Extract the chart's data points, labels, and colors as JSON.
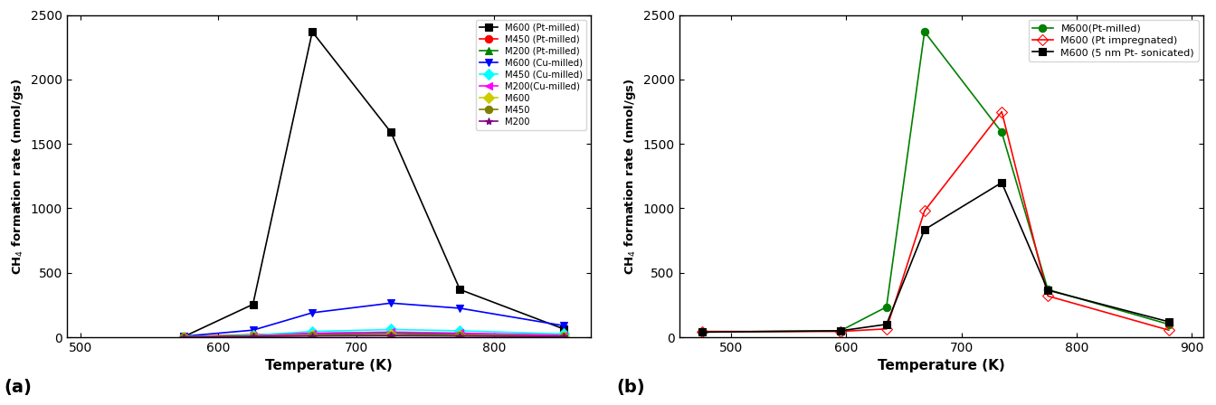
{
  "panel_a": {
    "series": [
      {
        "label": "M600 (Pt-milled)",
        "color": "black",
        "marker": "s",
        "marker_face": "black",
        "marker_edge": "black",
        "linestyle": "-",
        "x": [
          575,
          625,
          668,
          725,
          775,
          850
        ],
        "y": [
          5,
          255,
          2370,
          1590,
          370,
          65
        ]
      },
      {
        "label": "M450 (Pt-milled)",
        "color": "red",
        "marker": "o",
        "marker_face": "red",
        "marker_edge": "red",
        "linestyle": "-",
        "x": [
          575,
          625,
          668,
          725,
          775,
          850
        ],
        "y": [
          5,
          20,
          30,
          35,
          25,
          15
        ]
      },
      {
        "label": "M200 (Pt-milled)",
        "color": "green",
        "marker": "^",
        "marker_face": "green",
        "marker_edge": "green",
        "linestyle": "-",
        "x": [
          575,
          625,
          668,
          725,
          775,
          850
        ],
        "y": [
          3,
          15,
          25,
          30,
          20,
          12
        ]
      },
      {
        "label": "M600 (Cu-milled)",
        "color": "blue",
        "marker": "v",
        "marker_face": "blue",
        "marker_edge": "blue",
        "linestyle": "-",
        "x": [
          575,
          625,
          668,
          725,
          775,
          850
        ],
        "y": [
          8,
          55,
          190,
          265,
          225,
          90
        ]
      },
      {
        "label": "M450 (Cu-milled)",
        "color": "cyan",
        "marker": "D",
        "marker_face": "cyan",
        "marker_edge": "cyan",
        "linestyle": "-",
        "x": [
          575,
          625,
          668,
          725,
          775,
          850
        ],
        "y": [
          3,
          15,
          45,
          60,
          50,
          25
        ]
      },
      {
        "label": "M200(Cu-milled)",
        "color": "magenta",
        "marker": "<",
        "marker_face": "magenta",
        "marker_edge": "magenta",
        "linestyle": "-",
        "x": [
          575,
          625,
          668,
          725,
          775,
          850
        ],
        "y": [
          2,
          10,
          30,
          40,
          32,
          15
        ]
      },
      {
        "label": "M600",
        "color": "#cccc00",
        "marker": "D",
        "marker_face": "#cccc00",
        "marker_edge": "#cccc00",
        "linestyle": "-",
        "x": [
          575,
          625,
          668,
          725,
          775,
          850
        ],
        "y": [
          2,
          8,
          15,
          18,
          14,
          8
        ]
      },
      {
        "label": "M450",
        "color": "#808000",
        "marker": "o",
        "marker_face": "#808000",
        "marker_edge": "#808000",
        "linestyle": "-",
        "x": [
          575,
          625,
          668,
          725,
          775,
          850
        ],
        "y": [
          2,
          8,
          13,
          16,
          12,
          7
        ]
      },
      {
        "label": "M200",
        "color": "purple",
        "marker": "*",
        "marker_face": "purple",
        "marker_edge": "purple",
        "linestyle": "-",
        "x": [
          575,
          625,
          668,
          725,
          775,
          850
        ],
        "y": [
          1,
          6,
          10,
          12,
          10,
          5
        ]
      }
    ],
    "xlabel": "Temperature (K)",
    "ylabel": "CH$_4$ formation rate (nmol/gs)",
    "xlim": [
      490,
      870
    ],
    "ylim": [
      0,
      2500
    ],
    "xticks": [
      500,
      600,
      700,
      800
    ],
    "yticks": [
      0,
      500,
      1000,
      1500,
      2000,
      2500
    ],
    "label": "(a)"
  },
  "panel_b": {
    "series": [
      {
        "label": "M600(Pt-milled)",
        "color": "green",
        "marker": "o",
        "marker_face": "green",
        "marker_edge": "green",
        "linestyle": "-",
        "x": [
          475,
          595,
          635,
          668,
          735,
          775,
          880
        ],
        "y": [
          40,
          50,
          235,
          2370,
          1590,
          370,
          100
        ]
      },
      {
        "label": "M600 (Pt impregnated)",
        "color": "red",
        "marker": "D",
        "marker_face": "none",
        "marker_edge": "red",
        "linestyle": "-",
        "x": [
          475,
          595,
          635,
          668,
          735,
          775,
          880
        ],
        "y": [
          45,
          45,
          65,
          980,
          1750,
          320,
          55
        ]
      },
      {
        "label": "M600 (5 nm Pt- sonicated)",
        "color": "black",
        "marker": "s",
        "marker_face": "black",
        "marker_edge": "black",
        "linestyle": "-",
        "x": [
          475,
          595,
          635,
          668,
          735,
          775,
          880
        ],
        "y": [
          40,
          50,
          100,
          835,
          1200,
          365,
          120
        ]
      }
    ],
    "xlabel": "Temperature (K)",
    "ylabel": "CH$_4$ formation rate (nmol/gs)",
    "xlim": [
      455,
      910
    ],
    "ylim": [
      0,
      2500
    ],
    "xticks": [
      500,
      600,
      700,
      800,
      900
    ],
    "yticks": [
      0,
      500,
      1000,
      1500,
      2000,
      2500
    ],
    "label": "(b)"
  }
}
